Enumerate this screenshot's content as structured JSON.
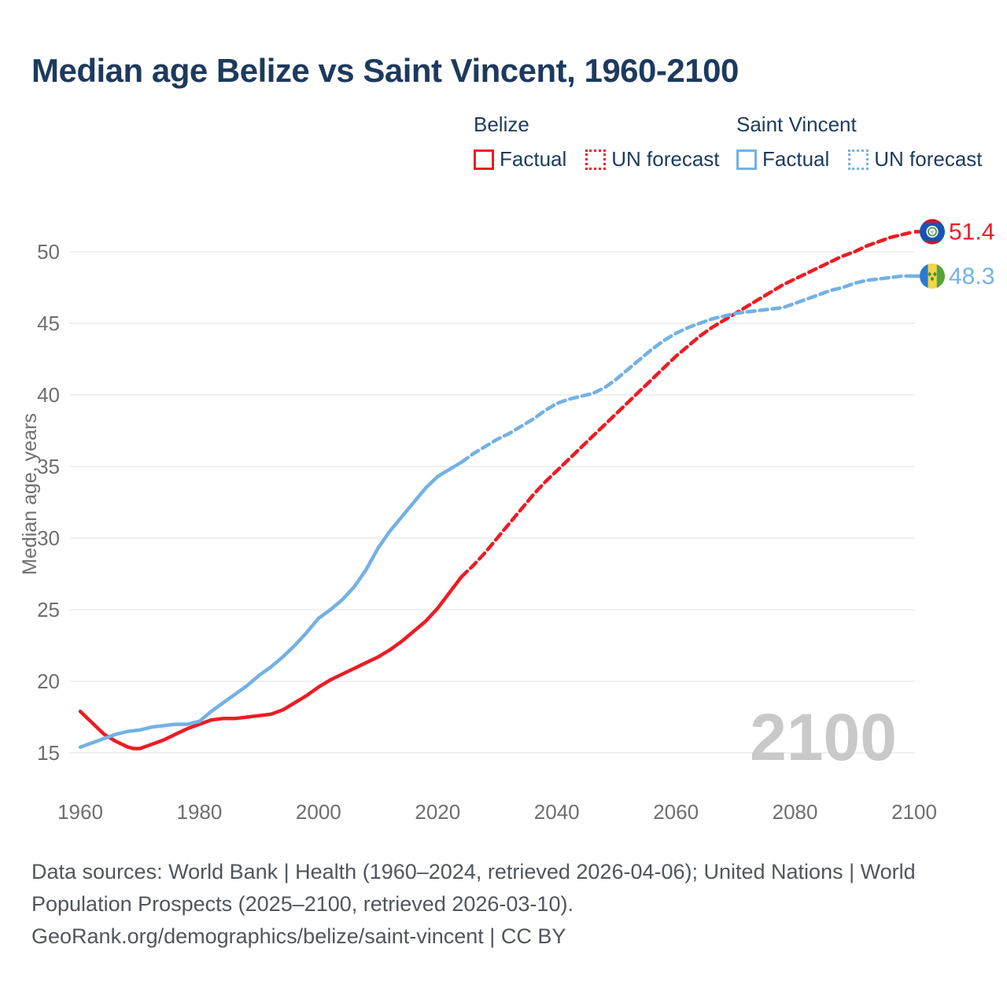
{
  "title": "Median age Belize vs Saint Vincent, 1960-2100",
  "watermark": "2100",
  "legend": {
    "groups": [
      {
        "name": "Belize",
        "factual_label": "Factual",
        "forecast_label": "UN forecast",
        "color": "#ed1c24"
      },
      {
        "name": "Saint Vincent",
        "factual_label": "Factual",
        "forecast_label": "UN forecast",
        "color": "#73b1e5"
      }
    ]
  },
  "chart_data": {
    "type": "line",
    "title": "Median age Belize vs Saint Vincent, 1960-2100",
    "xlabel": "",
    "ylabel": "Median age, years",
    "xlim": [
      1960,
      2100
    ],
    "ylim": [
      15,
      50
    ],
    "grid": true,
    "legend_position": "top-right",
    "x_ticks": [
      1960,
      1980,
      2000,
      2020,
      2040,
      2060,
      2080,
      2100
    ],
    "y_ticks": [
      15,
      20,
      25,
      30,
      35,
      40,
      45,
      50
    ],
    "series": [
      {
        "id": "belize-factual",
        "name": "Belize Factual",
        "color": "#ed1c24",
        "style": "solid",
        "points": [
          [
            1960,
            17.9
          ],
          [
            1962,
            17.1
          ],
          [
            1964,
            16.3
          ],
          [
            1966,
            15.8
          ],
          [
            1968,
            15.4
          ],
          [
            1969,
            15.3
          ],
          [
            1970,
            15.3
          ],
          [
            1972,
            15.6
          ],
          [
            1974,
            15.9
          ],
          [
            1976,
            16.3
          ],
          [
            1978,
            16.7
          ],
          [
            1980,
            17.0
          ],
          [
            1982,
            17.3
          ],
          [
            1984,
            17.4
          ],
          [
            1986,
            17.4
          ],
          [
            1988,
            17.5
          ],
          [
            1990,
            17.6
          ],
          [
            1992,
            17.7
          ],
          [
            1994,
            18.0
          ],
          [
            1996,
            18.5
          ],
          [
            1998,
            19.0
          ],
          [
            2000,
            19.6
          ],
          [
            2002,
            20.1
          ],
          [
            2004,
            20.5
          ],
          [
            2006,
            20.9
          ],
          [
            2008,
            21.3
          ],
          [
            2010,
            21.7
          ],
          [
            2012,
            22.2
          ],
          [
            2014,
            22.8
          ],
          [
            2016,
            23.5
          ],
          [
            2018,
            24.2
          ],
          [
            2020,
            25.1
          ],
          [
            2022,
            26.2
          ],
          [
            2024,
            27.3
          ]
        ]
      },
      {
        "id": "belize-forecast",
        "name": "Belize UN forecast",
        "color": "#ed1c24",
        "style": "dashed",
        "points": [
          [
            2024,
            27.3
          ],
          [
            2026,
            28.1
          ],
          [
            2028,
            29.0
          ],
          [
            2030,
            30.0
          ],
          [
            2032,
            31.0
          ],
          [
            2034,
            32.0
          ],
          [
            2036,
            33.0
          ],
          [
            2038,
            33.9
          ],
          [
            2040,
            34.7
          ],
          [
            2042,
            35.5
          ],
          [
            2044,
            36.3
          ],
          [
            2046,
            37.1
          ],
          [
            2048,
            37.9
          ],
          [
            2050,
            38.7
          ],
          [
            2052,
            39.5
          ],
          [
            2054,
            40.3
          ],
          [
            2056,
            41.1
          ],
          [
            2058,
            41.9
          ],
          [
            2060,
            42.7
          ],
          [
            2062,
            43.4
          ],
          [
            2064,
            44.1
          ],
          [
            2066,
            44.7
          ],
          [
            2068,
            45.2
          ],
          [
            2070,
            45.7
          ],
          [
            2072,
            46.2
          ],
          [
            2074,
            46.7
          ],
          [
            2076,
            47.2
          ],
          [
            2078,
            47.7
          ],
          [
            2080,
            48.1
          ],
          [
            2082,
            48.5
          ],
          [
            2084,
            48.9
          ],
          [
            2086,
            49.3
          ],
          [
            2088,
            49.7
          ],
          [
            2090,
            50.0
          ],
          [
            2092,
            50.4
          ],
          [
            2094,
            50.7
          ],
          [
            2096,
            51.0
          ],
          [
            2098,
            51.2
          ],
          [
            2100,
            51.4
          ]
        ]
      },
      {
        "id": "saint-vincent-factual",
        "name": "Saint Vincent Factual",
        "color": "#73b1e5",
        "style": "solid",
        "points": [
          [
            1960,
            15.4
          ],
          [
            1962,
            15.7
          ],
          [
            1964,
            16.0
          ],
          [
            1966,
            16.3
          ],
          [
            1968,
            16.5
          ],
          [
            1970,
            16.6
          ],
          [
            1972,
            16.8
          ],
          [
            1974,
            16.9
          ],
          [
            1976,
            17.0
          ],
          [
            1978,
            17.0
          ],
          [
            1980,
            17.2
          ],
          [
            1982,
            17.9
          ],
          [
            1984,
            18.5
          ],
          [
            1986,
            19.1
          ],
          [
            1988,
            19.7
          ],
          [
            1990,
            20.4
          ],
          [
            1992,
            21.0
          ],
          [
            1994,
            21.7
          ],
          [
            1996,
            22.5
          ],
          [
            1998,
            23.4
          ],
          [
            2000,
            24.4
          ],
          [
            2002,
            25.0
          ],
          [
            2004,
            25.7
          ],
          [
            2006,
            26.6
          ],
          [
            2008,
            27.8
          ],
          [
            2010,
            29.3
          ],
          [
            2012,
            30.5
          ],
          [
            2014,
            31.5
          ],
          [
            2016,
            32.5
          ],
          [
            2018,
            33.5
          ],
          [
            2020,
            34.3
          ],
          [
            2022,
            34.8
          ],
          [
            2024,
            35.3
          ]
        ]
      },
      {
        "id": "saint-vincent-forecast",
        "name": "Saint Vincent UN forecast",
        "color": "#73b1e5",
        "style": "dashed",
        "points": [
          [
            2024,
            35.3
          ],
          [
            2026,
            35.9
          ],
          [
            2028,
            36.4
          ],
          [
            2030,
            36.9
          ],
          [
            2032,
            37.3
          ],
          [
            2034,
            37.8
          ],
          [
            2036,
            38.3
          ],
          [
            2038,
            38.9
          ],
          [
            2040,
            39.4
          ],
          [
            2042,
            39.7
          ],
          [
            2044,
            39.9
          ],
          [
            2046,
            40.1
          ],
          [
            2048,
            40.5
          ],
          [
            2050,
            41.1
          ],
          [
            2052,
            41.8
          ],
          [
            2054,
            42.5
          ],
          [
            2056,
            43.2
          ],
          [
            2058,
            43.8
          ],
          [
            2060,
            44.3
          ],
          [
            2062,
            44.7
          ],
          [
            2064,
            45.0
          ],
          [
            2066,
            45.3
          ],
          [
            2068,
            45.5
          ],
          [
            2070,
            45.7
          ],
          [
            2072,
            45.8
          ],
          [
            2074,
            45.9
          ],
          [
            2076,
            46.0
          ],
          [
            2078,
            46.1
          ],
          [
            2080,
            46.4
          ],
          [
            2082,
            46.7
          ],
          [
            2084,
            47.0
          ],
          [
            2086,
            47.3
          ],
          [
            2088,
            47.5
          ],
          [
            2090,
            47.8
          ],
          [
            2092,
            48.0
          ],
          [
            2094,
            48.1
          ],
          [
            2096,
            48.2
          ],
          [
            2098,
            48.3
          ],
          [
            2100,
            48.3
          ]
        ]
      }
    ],
    "end_labels": [
      {
        "text": "51.4",
        "value": 51.4,
        "color": "#ed1c24",
        "flag": "belize"
      },
      {
        "text": "48.3",
        "value": 48.3,
        "color": "#73b1e5",
        "flag": "saint-vincent"
      }
    ]
  },
  "footer": {
    "line1": "Data sources: World Bank | Health (1960–2024, retrieved 2026-04-06); United Nations | World",
    "line2": "Population Prospects (2025–2100, retrieved 2026-03-10).",
    "line3": "GeoRank.org/demographics/belize/saint-vincent | CC BY"
  }
}
